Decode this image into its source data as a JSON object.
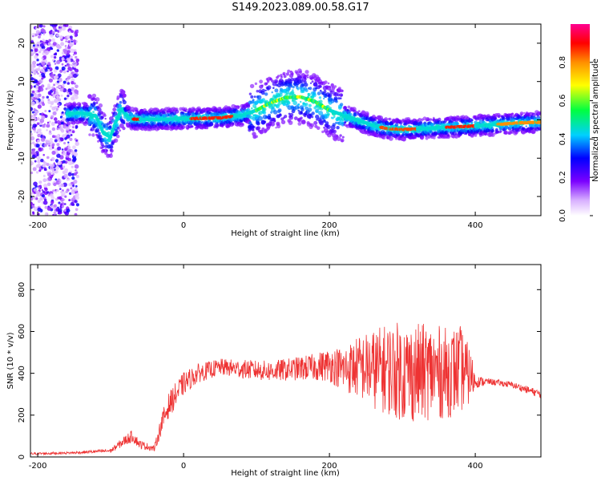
{
  "title": "S149.2023.089.00.58.G17",
  "chart_data": [
    {
      "type": "heatmap",
      "xlabel": "Height of straight line (km)",
      "ylabel": "Frequency (Hz)",
      "xlim": [
        -210,
        490
      ],
      "ylim": [
        -25,
        25
      ],
      "xticks": [
        -200,
        0,
        200,
        400
      ],
      "yticks": [
        -20,
        -10,
        0,
        10,
        20
      ],
      "colorbar": {
        "label": "Normalized spectral amplitude",
        "range": [
          0,
          1
        ],
        "ticks": [
          0.0,
          0.2,
          0.4,
          0.6,
          0.8
        ]
      },
      "ridge": {
        "x": [
          -160,
          -140,
          -120,
          -110,
          -100,
          -95,
          -90,
          -85,
          -80,
          -70,
          -50,
          0,
          50,
          80,
          100,
          120,
          140,
          160,
          180,
          200,
          230,
          260,
          280,
          300,
          320,
          350,
          380,
          400,
          430,
          460,
          490
        ],
        "y": [
          1.5,
          1.8,
          1.0,
          -3.5,
          -4.5,
          -1.5,
          0.8,
          3.0,
          1.5,
          0.2,
          0.1,
          0.3,
          0.5,
          1.2,
          2.5,
          4.5,
          5.8,
          6.0,
          4.8,
          2.5,
          0.5,
          -1.5,
          -2.3,
          -2.5,
          -2.4,
          -2.0,
          -1.8,
          -1.6,
          -1.2,
          -0.8,
          -0.6
        ]
      },
      "noise_region_x": [
        -210,
        -145
      ]
    },
    {
      "type": "line",
      "xlabel": "Height of straight line (km)",
      "ylabel": "SNR (10 * v/v)",
      "xlim": [
        -210,
        490
      ],
      "ylim": [
        0,
        920
      ],
      "xticks": [
        -200,
        0,
        200,
        400
      ],
      "yticks": [
        0,
        200,
        400,
        600,
        800
      ],
      "series": [
        {
          "color": "#ee3333",
          "envelope_x": [
            -210,
            -150,
            -100,
            -80,
            -70,
            -60,
            -40,
            -30,
            -20,
            -10,
            0,
            20,
            50,
            80,
            120,
            150,
            180,
            200,
            220,
            240,
            260,
            280,
            300,
            320,
            340,
            360,
            380,
            395,
            400,
            420,
            450,
            490
          ],
          "mean_y": [
            15,
            20,
            30,
            80,
            100,
            60,
            40,
            160,
            250,
            300,
            350,
            400,
            430,
            420,
            410,
            420,
            430,
            440,
            420,
            430,
            420,
            420,
            410,
            400,
            410,
            400,
            420,
            380,
            360,
            360,
            345,
            300
          ],
          "spread_y": [
            6,
            6,
            10,
            25,
            30,
            20,
            15,
            50,
            60,
            60,
            55,
            45,
            40,
            45,
            50,
            55,
            65,
            80,
            110,
            150,
            190,
            220,
            240,
            240,
            230,
            220,
            210,
            120,
            30,
            15,
            15,
            20
          ]
        }
      ]
    }
  ]
}
